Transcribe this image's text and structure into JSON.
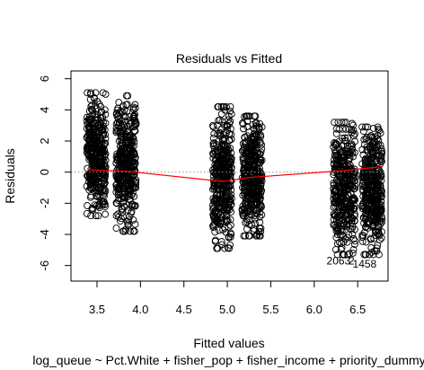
{
  "chart_data": {
    "type": "scatter",
    "title": "Residuals vs Fitted",
    "xlabel": "Fitted values",
    "ylabel": "Residuals",
    "subtitle": "log_queue ~ Pct.White + fisher_pop + fisher_income + priority_dummy",
    "xlim": [
      3.2,
      6.85
    ],
    "ylim": [
      -7,
      6.5
    ],
    "x_ticks": [
      "3.5",
      "4.0",
      "4.5",
      "5.0",
      "5.5",
      "6.0",
      "6.5"
    ],
    "y_ticks": [
      "-6",
      "-4",
      "-2",
      "0",
      "2",
      "4",
      "6"
    ],
    "grid": false,
    "reference_line_y": 0,
    "clusters": [
      {
        "x_range": [
          3.38,
          3.6
        ],
        "y_range": [
          -2.8,
          5.1
        ]
      },
      {
        "x_range": [
          3.72,
          3.95
        ],
        "y_range": [
          -3.8,
          4.9
        ]
      },
      {
        "x_range": [
          4.83,
          5.05
        ],
        "y_range": [
          -4.9,
          4.2
        ]
      },
      {
        "x_range": [
          5.17,
          5.4
        ],
        "y_range": [
          -4.1,
          3.6
        ]
      },
      {
        "x_range": [
          6.22,
          6.47
        ],
        "y_range": [
          -5.3,
          3.2
        ]
      },
      {
        "x_range": [
          6.55,
          6.78
        ],
        "y_range": [
          -5.3,
          2.9
        ]
      }
    ],
    "smooth_line": {
      "color": "#ff0000",
      "x": [
        3.4,
        3.85,
        4.95,
        5.25,
        6.35,
        6.77
      ],
      "y": [
        0.15,
        0.05,
        -0.6,
        -0.35,
        0.1,
        0.35
      ]
    },
    "annotations": [
      {
        "text": "2063",
        "x": 6.28,
        "y": -5.7
      },
      {
        "text": "1458",
        "x": 6.58,
        "y": -5.9
      },
      {
        "text": "2",
        "x": 6.43,
        "y": -5.7
      }
    ]
  }
}
